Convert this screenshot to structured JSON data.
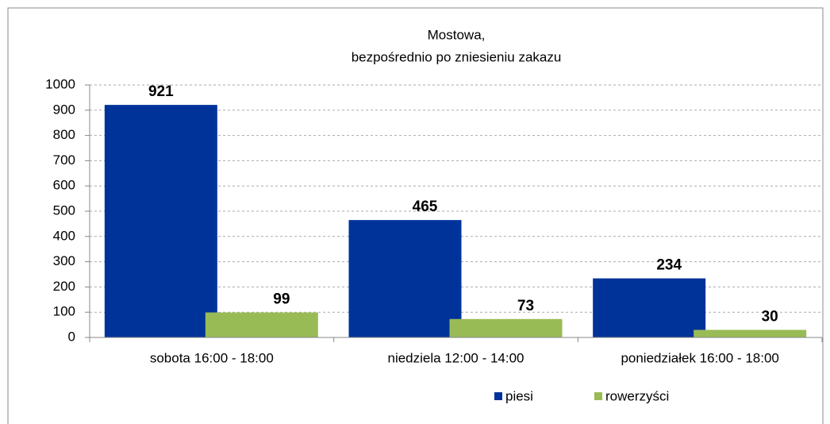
{
  "chart_data": {
    "type": "bar",
    "title": [
      "Mostowa,",
      "bezpośrednio po zniesieniu zakazu"
    ],
    "categories": [
      "sobota 16:00 - 18:00",
      "niedziela 12:00 - 14:00",
      "poniedziałek 16:00 - 18:00"
    ],
    "series": [
      {
        "name": "piesi",
        "color": "#003399",
        "values": [
          921,
          465,
          234
        ]
      },
      {
        "name": "rowerzyści",
        "color": "#99bb55",
        "values": [
          99,
          73,
          30
        ]
      }
    ],
    "ylim": [
      0,
      1000
    ],
    "yticks": [
      0,
      100,
      200,
      300,
      400,
      500,
      600,
      700,
      800,
      900,
      1000
    ],
    "grid": true,
    "legend": "bottom"
  }
}
